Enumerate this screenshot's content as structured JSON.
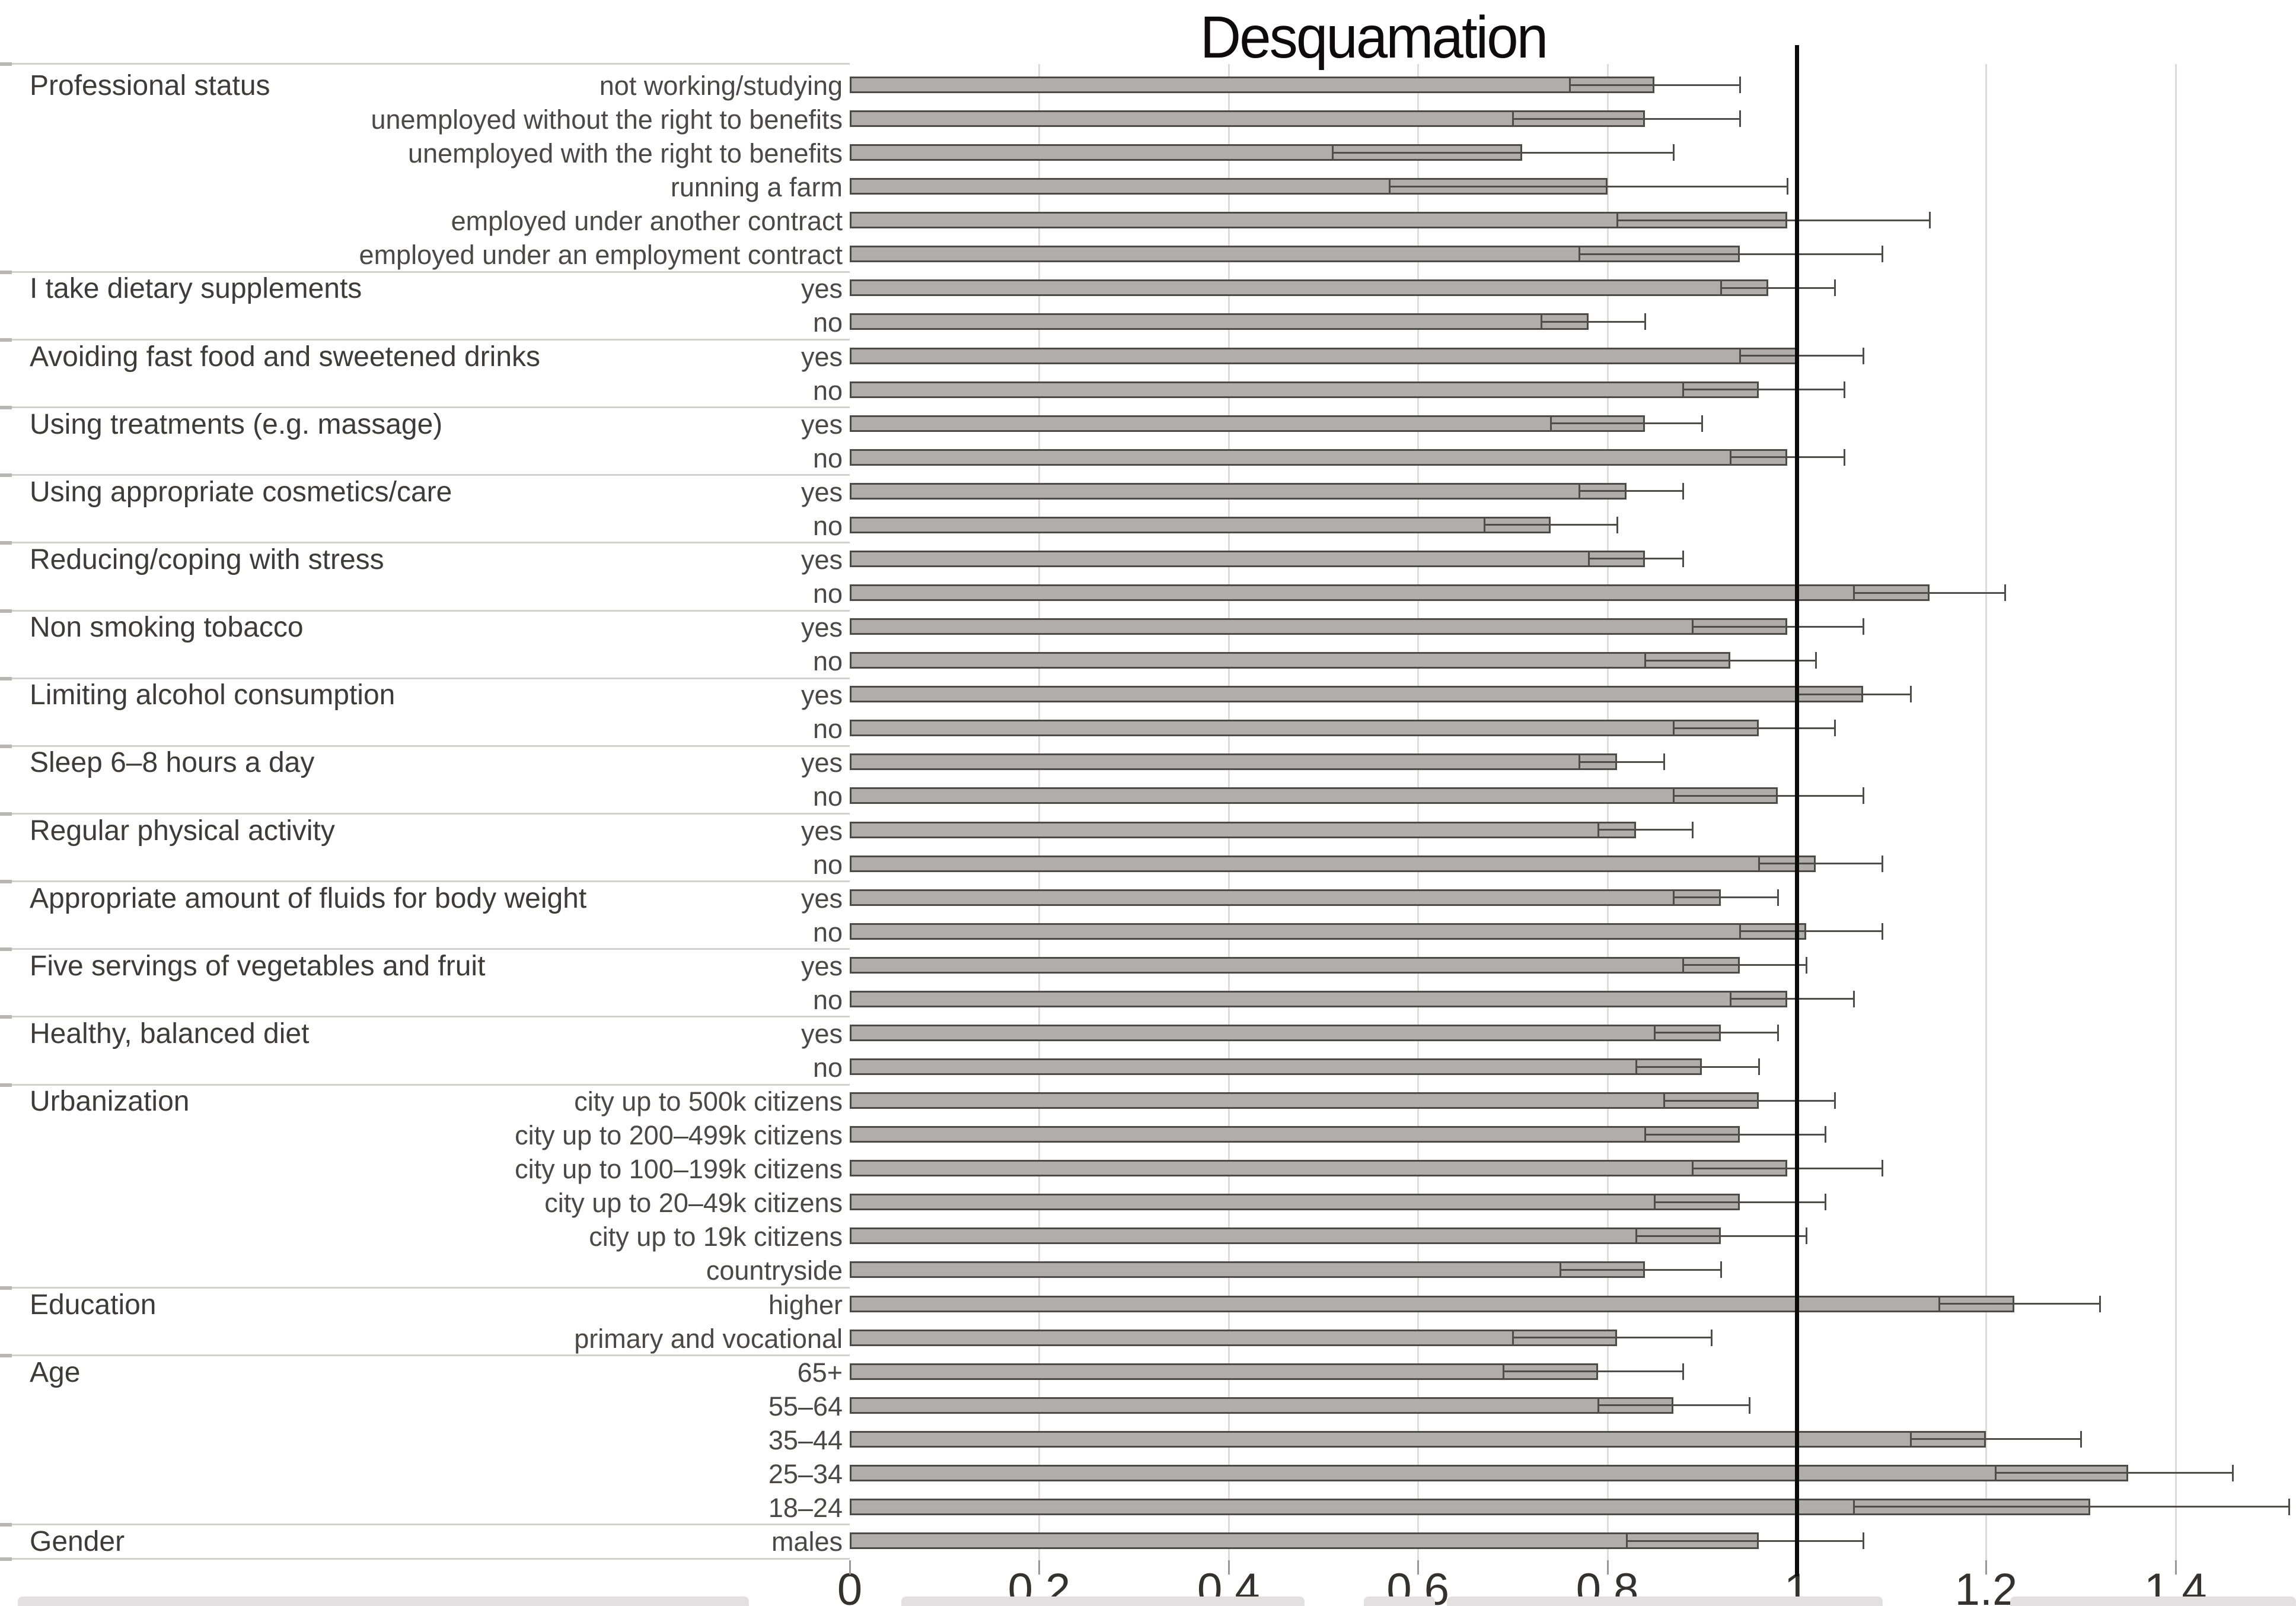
{
  "title": "Desquamation",
  "colors": {
    "bar_fill": "#b2adad",
    "bar_border": "#4d4a4a",
    "whisker": "#4f4c4c",
    "gridline": "#dedbdb",
    "reference_line": "#0b0b0b",
    "separator": "#d2cfcf",
    "group_label_text": "#3e3b3b",
    "item_label_text": "#4b4848",
    "axis_text": "#343131"
  },
  "chart_data": {
    "type": "bar",
    "orientation": "horizontal",
    "title": "Desquamation",
    "xlabel": "",
    "ylabel": "",
    "xlim": [
      0,
      1.53
    ],
    "x_ticks": [
      0,
      0.2,
      0.4,
      0.6,
      0.8,
      1,
      1.2,
      1.4
    ],
    "x_tick_labels": [
      "0",
      "0.2",
      "0.4",
      "0.6",
      "0.8",
      "1",
      "1.2",
      "1.4"
    ],
    "gridlines": true,
    "reference_line_x": 1.0,
    "error_bars": true,
    "groups": [
      {
        "label": "Professional status",
        "items": [
          {
            "label": "not working/studying",
            "value": 0.85,
            "ci_low": 0.76,
            "ci_high": 0.94
          },
          {
            "label": "unemployed without the right to benefits",
            "value": 0.84,
            "ci_low": 0.7,
            "ci_high": 0.94
          },
          {
            "label": "unemployed with the right to benefits",
            "value": 0.71,
            "ci_low": 0.51,
            "ci_high": 0.87
          },
          {
            "label": "running a farm",
            "value": 0.8,
            "ci_low": 0.57,
            "ci_high": 0.99
          },
          {
            "label": "employed under another contract",
            "value": 0.99,
            "ci_low": 0.81,
            "ci_high": 1.14
          },
          {
            "label": "employed under an employment contract",
            "value": 0.94,
            "ci_low": 0.77,
            "ci_high": 1.09
          }
        ]
      },
      {
        "label": "I take dietary supplements",
        "items": [
          {
            "label": "yes",
            "value": 0.97,
            "ci_low": 0.92,
            "ci_high": 1.04
          },
          {
            "label": "no",
            "value": 0.78,
            "ci_low": 0.73,
            "ci_high": 0.84
          }
        ]
      },
      {
        "label": "Avoiding fast food and sweetened drinks",
        "items": [
          {
            "label": "yes",
            "value": 1.0,
            "ci_low": 0.94,
            "ci_high": 1.07
          },
          {
            "label": "no",
            "value": 0.96,
            "ci_low": 0.88,
            "ci_high": 1.05
          }
        ]
      },
      {
        "label": "Using treatments (e.g. massage)",
        "items": [
          {
            "label": "yes",
            "value": 0.84,
            "ci_low": 0.74,
            "ci_high": 0.9
          },
          {
            "label": "no",
            "value": 0.99,
            "ci_low": 0.93,
            "ci_high": 1.05
          }
        ]
      },
      {
        "label": "Using appropriate cosmetics/care",
        "items": [
          {
            "label": "yes",
            "value": 0.82,
            "ci_low": 0.77,
            "ci_high": 0.88
          },
          {
            "label": "no",
            "value": 0.74,
            "ci_low": 0.67,
            "ci_high": 0.81
          }
        ]
      },
      {
        "label": "Reducing/coping with stress",
        "items": [
          {
            "label": "yes",
            "value": 0.84,
            "ci_low": 0.78,
            "ci_high": 0.88
          },
          {
            "label": "no",
            "value": 1.14,
            "ci_low": 1.06,
            "ci_high": 1.22
          }
        ]
      },
      {
        "label": "Non smoking tobacco",
        "items": [
          {
            "label": "yes",
            "value": 0.99,
            "ci_low": 0.89,
            "ci_high": 1.07
          },
          {
            "label": "no",
            "value": 0.93,
            "ci_low": 0.84,
            "ci_high": 1.02
          }
        ]
      },
      {
        "label": "Limiting alcohol consumption",
        "items": [
          {
            "label": "yes",
            "value": 1.07,
            "ci_low": 1.0,
            "ci_high": 1.12
          },
          {
            "label": "no",
            "value": 0.96,
            "ci_low": 0.87,
            "ci_high": 1.04
          }
        ]
      },
      {
        "label": "Sleep 6–8 hours a day",
        "items": [
          {
            "label": "yes",
            "value": 0.81,
            "ci_low": 0.77,
            "ci_high": 0.86
          },
          {
            "label": "no",
            "value": 0.98,
            "ci_low": 0.87,
            "ci_high": 1.07
          }
        ]
      },
      {
        "label": "Regular physical activity",
        "items": [
          {
            "label": "yes",
            "value": 0.83,
            "ci_low": 0.79,
            "ci_high": 0.89
          },
          {
            "label": "no",
            "value": 1.02,
            "ci_low": 0.96,
            "ci_high": 1.09
          }
        ]
      },
      {
        "label": "Appropriate amount of fluids for body weight",
        "items": [
          {
            "label": "yes",
            "value": 0.92,
            "ci_low": 0.87,
            "ci_high": 0.98
          },
          {
            "label": "no",
            "value": 1.01,
            "ci_low": 0.94,
            "ci_high": 1.09
          }
        ]
      },
      {
        "label": "Five servings of vegetables and fruit",
        "items": [
          {
            "label": "yes",
            "value": 0.94,
            "ci_low": 0.88,
            "ci_high": 1.01
          },
          {
            "label": "no",
            "value": 0.99,
            "ci_low": 0.93,
            "ci_high": 1.06
          }
        ]
      },
      {
        "label": "Healthy, balanced diet",
        "items": [
          {
            "label": "yes",
            "value": 0.92,
            "ci_low": 0.85,
            "ci_high": 0.98
          },
          {
            "label": "no",
            "value": 0.9,
            "ci_low": 0.83,
            "ci_high": 0.96
          }
        ]
      },
      {
        "label": "Urbanization",
        "items": [
          {
            "label": "city up to 500k citizens",
            "value": 0.96,
            "ci_low": 0.86,
            "ci_high": 1.04
          },
          {
            "label": "city up to 200–499k citizens",
            "value": 0.94,
            "ci_low": 0.84,
            "ci_high": 1.03
          },
          {
            "label": "city up to 100–199k citizens",
            "value": 0.99,
            "ci_low": 0.89,
            "ci_high": 1.09
          },
          {
            "label": "city up to 20–49k citizens",
            "value": 0.94,
            "ci_low": 0.85,
            "ci_high": 1.03
          },
          {
            "label": "city up to 19k citizens",
            "value": 0.92,
            "ci_low": 0.83,
            "ci_high": 1.01
          },
          {
            "label": "countryside",
            "value": 0.84,
            "ci_low": 0.75,
            "ci_high": 0.92
          }
        ]
      },
      {
        "label": "Education",
        "items": [
          {
            "label": "higher",
            "value": 1.23,
            "ci_low": 1.15,
            "ci_high": 1.32
          },
          {
            "label": "primary and vocational",
            "value": 0.81,
            "ci_low": 0.7,
            "ci_high": 0.91
          }
        ]
      },
      {
        "label": "Age",
        "items": [
          {
            "label": "65+",
            "value": 0.79,
            "ci_low": 0.69,
            "ci_high": 0.88
          },
          {
            "label": "55–64",
            "value": 0.87,
            "ci_low": 0.79,
            "ci_high": 0.95
          },
          {
            "label": "35–44",
            "value": 1.2,
            "ci_low": 1.12,
            "ci_high": 1.3
          },
          {
            "label": "25–34",
            "value": 1.35,
            "ci_low": 1.21,
            "ci_high": 1.46
          },
          {
            "label": "18–24",
            "value": 1.31,
            "ci_low": 1.06,
            "ci_high": 1.52
          }
        ]
      },
      {
        "label": "Gender",
        "items": [
          {
            "label": "males",
            "value": 0.96,
            "ci_low": 0.82,
            "ci_high": 1.07
          }
        ]
      }
    ]
  },
  "bottom_strip_segments": [
    [
      30,
      1263
    ],
    [
      1520,
      2200
    ],
    [
      2300,
      2420
    ],
    [
      2440,
      3175
    ],
    [
      3390,
      3872
    ]
  ]
}
